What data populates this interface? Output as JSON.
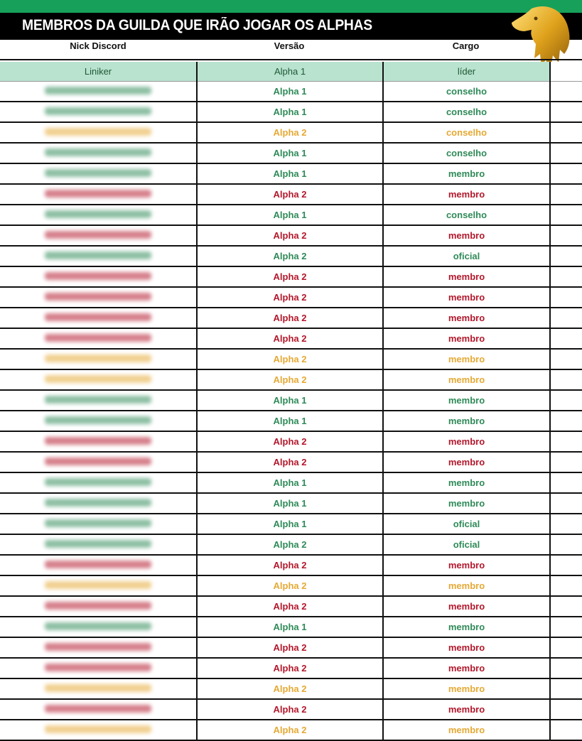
{
  "title": "MEMBROS DA GUILDA QUE IRÃO JOGAR OS ALPHAS",
  "headers": {
    "nick": "Nick Discord",
    "version": "Versão",
    "role": "Cargo"
  },
  "colors": {
    "green": "#2e8a58",
    "red": "#b3172b",
    "gold": "#e5a934",
    "header_green": "#17a05a",
    "leader_bg": "#b9e2cf"
  },
  "leader": {
    "nick": "Liniker",
    "version": "Alpha 1",
    "role": "líder"
  },
  "rows": [
    {
      "v": "Alpha 1",
      "r": "conselho",
      "c": "green"
    },
    {
      "v": "Alpha 1",
      "r": "conselho",
      "c": "green"
    },
    {
      "v": "Alpha 2",
      "r": "conselho",
      "c": "gold"
    },
    {
      "v": "Alpha 1",
      "r": "conselho",
      "c": "green"
    },
    {
      "v": "Alpha 1",
      "r": "membro",
      "c": "green"
    },
    {
      "v": "Alpha 2",
      "r": "membro",
      "c": "red"
    },
    {
      "v": "Alpha 1",
      "r": "conselho",
      "c": "green"
    },
    {
      "v": "Alpha 2",
      "r": "membro",
      "c": "red"
    },
    {
      "v": "Alpha 2",
      "r": "oficial",
      "c": "green"
    },
    {
      "v": "Alpha 2",
      "r": "membro",
      "c": "red"
    },
    {
      "v": "Alpha 2",
      "r": "membro",
      "c": "red"
    },
    {
      "v": "Alpha 2",
      "r": "membro",
      "c": "red"
    },
    {
      "v": "Alpha 2",
      "r": "membro",
      "c": "red"
    },
    {
      "v": "Alpha 2",
      "r": "membro",
      "c": "gold"
    },
    {
      "v": "Alpha 2",
      "r": "membro",
      "c": "gold"
    },
    {
      "v": "Alpha 1",
      "r": "membro",
      "c": "green"
    },
    {
      "v": "Alpha 1",
      "r": "membro",
      "c": "green"
    },
    {
      "v": "Alpha 2",
      "r": "membro",
      "c": "red"
    },
    {
      "v": "Alpha 2",
      "r": "membro",
      "c": "red"
    },
    {
      "v": "Alpha 1",
      "r": "membro",
      "c": "green"
    },
    {
      "v": "Alpha 1",
      "r": "membro",
      "c": "green"
    },
    {
      "v": "Alpha 1",
      "r": "oficial",
      "c": "green"
    },
    {
      "v": "Alpha 2",
      "r": "oficial",
      "c": "green"
    },
    {
      "v": "Alpha 2",
      "r": "membro",
      "c": "red"
    },
    {
      "v": "Alpha 2",
      "r": "membro",
      "c": "gold"
    },
    {
      "v": "Alpha 2",
      "r": "membro",
      "c": "red"
    },
    {
      "v": "Alpha 1",
      "r": "membro",
      "c": "green"
    },
    {
      "v": "Alpha 2",
      "r": "membro",
      "c": "red"
    },
    {
      "v": "Alpha 2",
      "r": "membro",
      "c": "red"
    },
    {
      "v": "Alpha 2",
      "r": "membro",
      "c": "gold"
    },
    {
      "v": "Alpha 2",
      "r": "membro",
      "c": "red"
    },
    {
      "v": "Alpha 2",
      "r": "membro",
      "c": "gold"
    }
  ]
}
